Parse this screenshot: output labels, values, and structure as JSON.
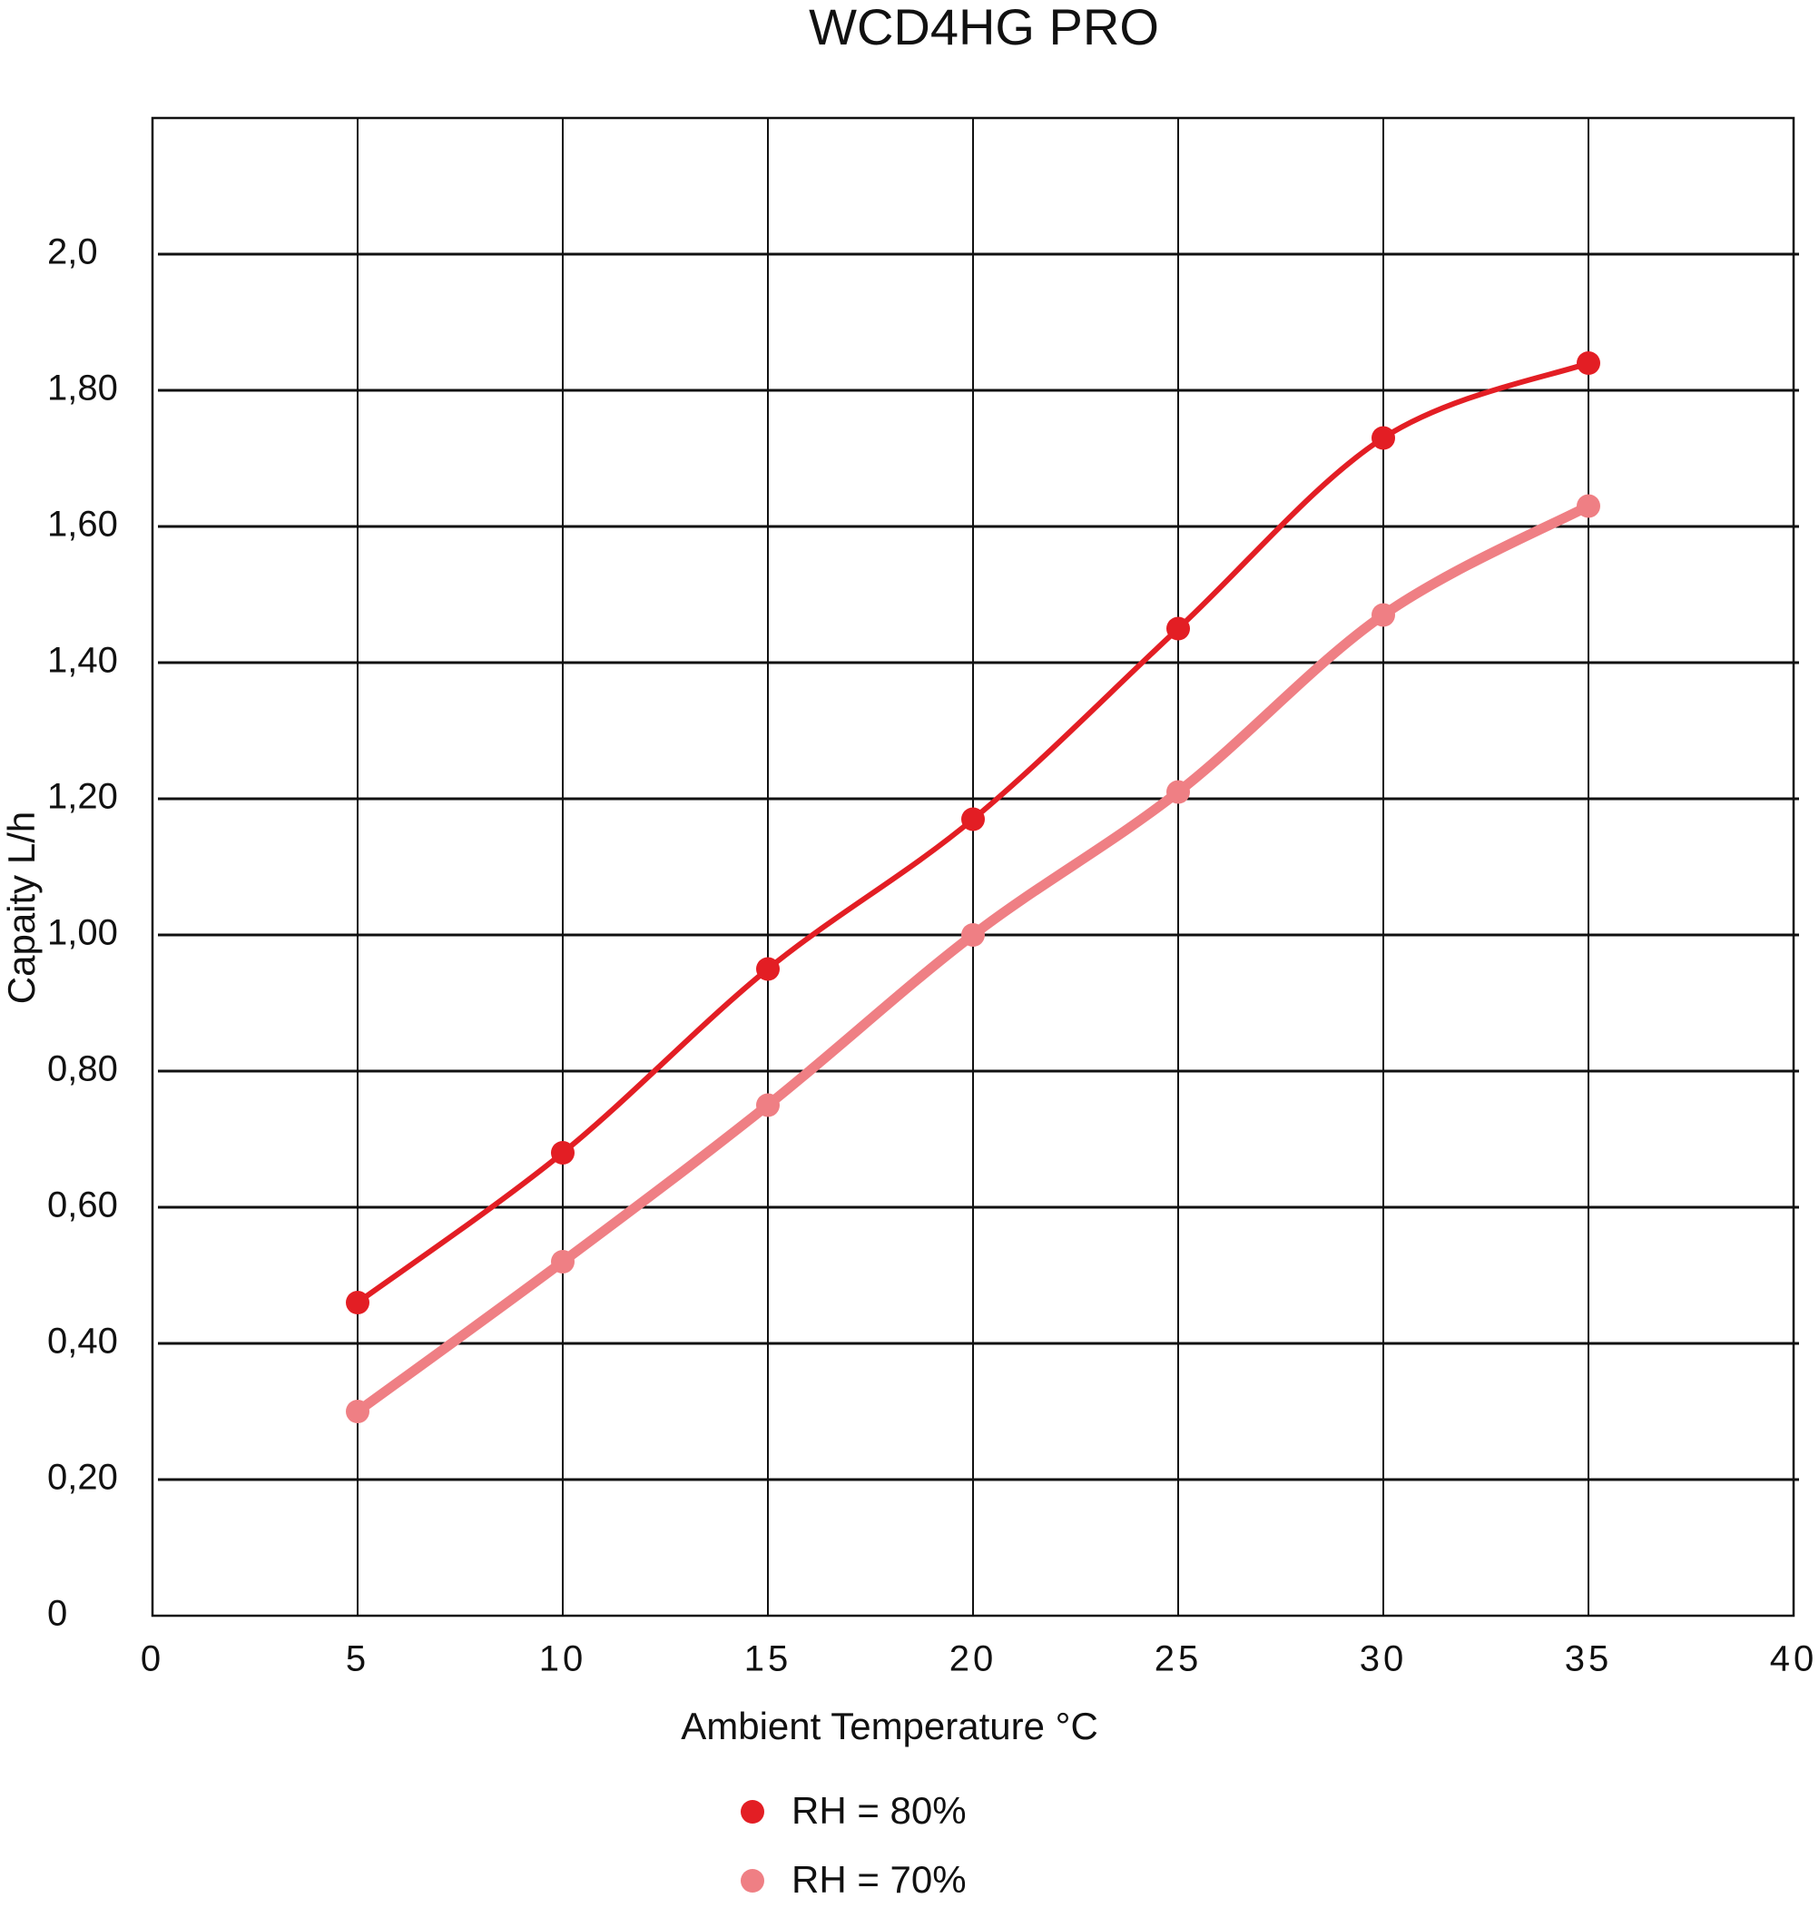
{
  "chart_data": {
    "type": "line",
    "title": "WCD4HG PRO",
    "x_label": "Ambient Temperature °C",
    "y_label": "Capaity L/h",
    "x": [
      5,
      10,
      15,
      20,
      25,
      30,
      35
    ],
    "series": [
      {
        "name": "RH = 80%",
        "color": "#e31e24",
        "values": [
          0.46,
          0.68,
          0.95,
          1.17,
          1.45,
          1.73,
          1.84
        ]
      },
      {
        "name": "RH = 70%",
        "color": "#ef7f84",
        "values": [
          0.3,
          0.52,
          0.75,
          1.0,
          1.21,
          1.47,
          1.63
        ]
      }
    ],
    "xlim": [
      0,
      40
    ],
    "xticks": [
      0,
      5,
      10,
      15,
      20,
      25,
      30,
      35,
      40
    ],
    "ylim": [
      0,
      2.2
    ],
    "yticks": [
      0,
      {
        "value": 0.2,
        "label": "0,20"
      },
      {
        "value": 0.4,
        "label": "0,40"
      },
      {
        "value": 0.6,
        "label": "0,60"
      },
      {
        "value": 0.8,
        "label": "0,80"
      },
      {
        "value": 1,
        "label": "1,00"
      },
      {
        "value": 1.2,
        "label": "1,20"
      },
      {
        "value": 1.4,
        "label": "1,40"
      },
      {
        "value": 1.6,
        "label": "1,60"
      },
      {
        "value": 1.8,
        "label": "1,80"
      },
      {
        "value": 2,
        "label": "2,0"
      }
    ],
    "grid": true,
    "legend": "bottom"
  }
}
